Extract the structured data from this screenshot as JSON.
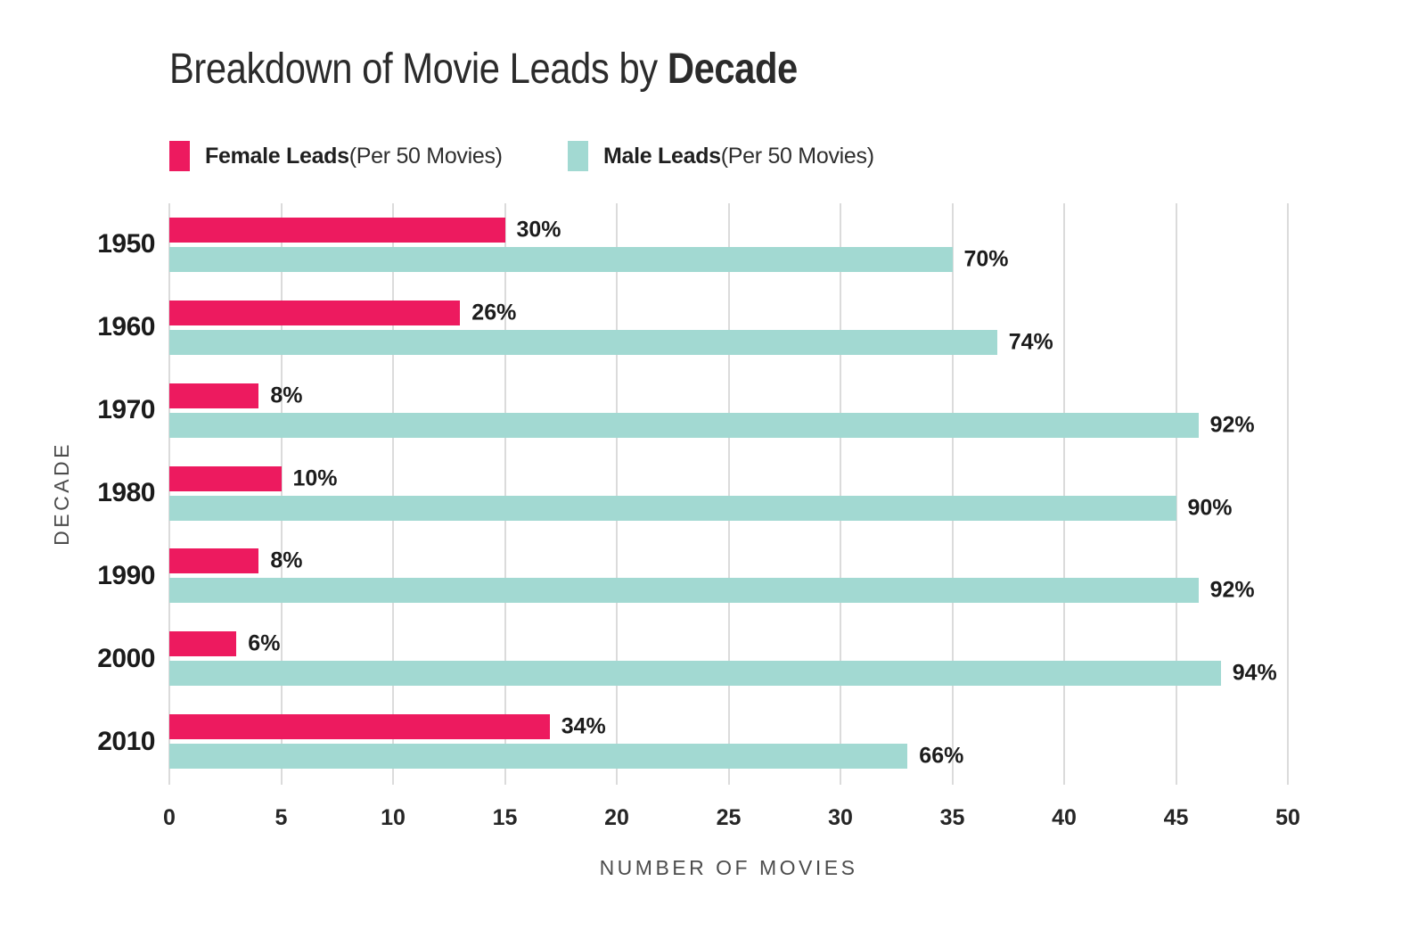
{
  "title": {
    "regular": "Breakdown of Movie Leads by ",
    "bold": "Decade"
  },
  "legend": [
    {
      "name": "Female Leads",
      "suffix": "(Per 50 Movies)",
      "color": "#ED1A5F"
    },
    {
      "name": "Male Leads",
      "suffix": "(Per 50 Movies)",
      "color": "#A2D9D2"
    }
  ],
  "chart_data": {
    "type": "bar",
    "orientation": "horizontal",
    "title": "Breakdown of Movie Leads by Decade",
    "categories": [
      "1950",
      "1960",
      "1970",
      "1980",
      "1990",
      "2000",
      "2010"
    ],
    "series": [
      {
        "name": "Female Leads (Per 50 Movies)",
        "color": "#ED1A5F",
        "values": [
          15,
          13,
          4,
          5,
          4,
          3,
          17
        ],
        "labels": [
          "30%",
          "26%",
          "8%",
          "10%",
          "8%",
          "6%",
          "34%"
        ]
      },
      {
        "name": "Male Leads (Per 50 Movies)",
        "color": "#A2D9D2",
        "values": [
          35,
          37,
          46,
          45,
          46,
          47,
          33
        ],
        "labels": [
          "70%",
          "74%",
          "92%",
          "90%",
          "92%",
          "94%",
          "66%"
        ]
      }
    ],
    "xlabel": "NUMBER OF MOVIES",
    "ylabel": "DECADE",
    "xlim": [
      0,
      50
    ],
    "xticks": [
      0,
      5,
      10,
      15,
      20,
      25,
      30,
      35,
      40,
      45,
      50
    ],
    "grid": true,
    "gridline_color": "#DBDBDB",
    "background": "#FFFFFF",
    "legend_position": "top-left"
  }
}
